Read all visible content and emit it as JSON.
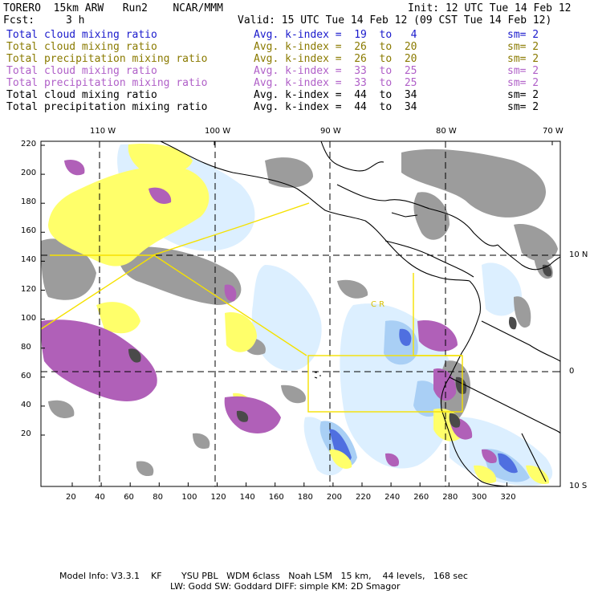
{
  "header": {
    "model": "TORERO  15km ARW   Run2    NCAR/MMM",
    "init": "Init: 12 UTC Tue 14 Feb 12",
    "fcst_label": "Fcst:",
    "fcst_value": "3 h",
    "valid": "Valid: 15 UTC Tue 14 Feb 12 (09 CST Tue 14 Feb 12)"
  },
  "legend": [
    {
      "field": "Total cloud mixing ratio",
      "index": "Avg. k-index =  19  to   4",
      "sm": "sm= 2",
      "color": "#1a1acc"
    },
    {
      "field": "Total cloud mixing ratio",
      "index": "Avg. k-index =  26  to  20",
      "sm": "sm= 2",
      "color": "#8a7a00"
    },
    {
      "field": "Total precipitation mixing ratio",
      "index": "Avg. k-index =  26  to  20",
      "sm": "sm= 2",
      "color": "#8a7a00"
    },
    {
      "field": "Total cloud mixing ratio",
      "index": "Avg. k-index =  33  to  25",
      "sm": "sm= 2",
      "color": "#b060c8"
    },
    {
      "field": "Total precipitation mixing ratio",
      "index": "Avg. k-index =  33  to  25",
      "sm": "sm= 2",
      "color": "#b060c8"
    },
    {
      "field": "Total cloud mixing ratio",
      "index": "Avg. k-index =  44  to  34",
      "sm": "sm= 2",
      "color": "#000000"
    },
    {
      "field": "Total precipitation mixing ratio",
      "index": "Avg. k-index =  44  to  34",
      "sm": "sm= 2",
      "color": "#000000"
    }
  ],
  "axes": {
    "top_lon": [
      "110 W",
      "100 W",
      "90 W",
      "80 W",
      "70 W"
    ],
    "right_lat": [
      "10 N",
      "0",
      "10 S"
    ],
    "left_ticks": [
      "220",
      "200",
      "180",
      "160",
      "140",
      "120",
      "100",
      "80",
      "60",
      "40",
      "20"
    ],
    "bottom_ticks": [
      "20",
      "40",
      "60",
      "80",
      "100",
      "120",
      "140",
      "160",
      "180",
      "200",
      "220",
      "240",
      "260",
      "280",
      "300",
      "320"
    ]
  },
  "map_labels": {
    "cr": "C R"
  },
  "footer": {
    "line1": "Model Info: V3.3.1    KF       YSU PBL   WDM 6class   Noah LSM   15 km,    44 levels,   168 sec",
    "line2": "LW: Godd SW: Goddard DIFF: simple KM: 2D Smagor"
  },
  "colors": {
    "gray": "#9c9c9c",
    "dark_gray": "#4a4a4a",
    "yellow": "#ffff6a",
    "box_yellow": "#f5e100",
    "violet": "#b060b8",
    "light_blue": "#dcefff",
    "mid_blue": "#a9cff5",
    "blue": "#4f6fe0"
  }
}
